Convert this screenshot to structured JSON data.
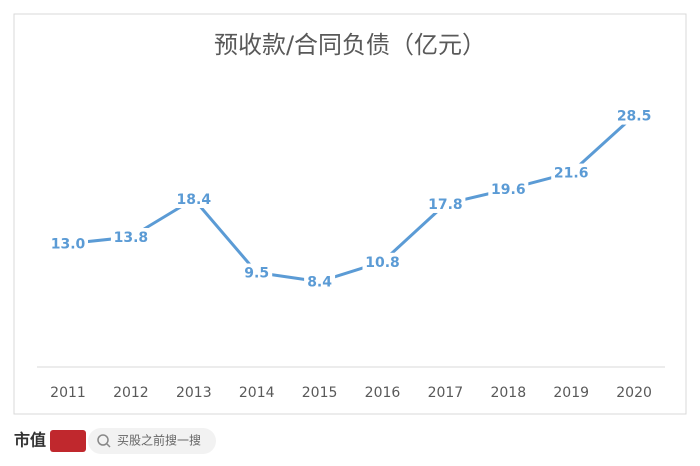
{
  "chart_data": {
    "type": "line",
    "title": "预收款/合同负债（亿元）",
    "categories": [
      "2011",
      "2012",
      "2013",
      "2014",
      "2015",
      "2016",
      "2017",
      "2018",
      "2019",
      "2020"
    ],
    "values": [
      13.0,
      13.8,
      18.4,
      9.5,
      8.4,
      10.8,
      17.8,
      19.6,
      21.6,
      28.5
    ],
    "value_labels": [
      "13.0",
      "13.8",
      "18.4",
      "9.5",
      "8.4",
      "10.8",
      "17.8",
      "19.6",
      "21.6",
      "28.5"
    ],
    "color": "#5b9bd5"
  },
  "footer": {
    "brand": "市值",
    "search": "买股之前搜一搜"
  }
}
